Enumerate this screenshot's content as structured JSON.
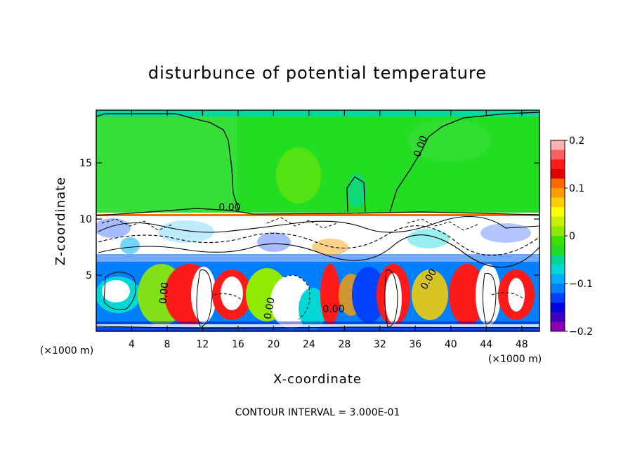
{
  "chart_data": {
    "type": "heatmap",
    "title": "disturbunce of potential temperature",
    "xlabel": "X-coordinate",
    "ylabel": "Z-coordinate",
    "x_unit_label": "(×1000 m)",
    "x_unit_label_right": "(×1000 m)",
    "xlim": [
      0,
      50
    ],
    "ylim": [
      0,
      19.7
    ],
    "x_ticks": [
      4,
      8,
      12,
      16,
      20,
      24,
      28,
      32,
      36,
      40,
      44,
      48
    ],
    "x_tick_labels": [
      "4",
      "8",
      "12",
      "16",
      "20",
      "24",
      "28",
      "32",
      "36",
      "40",
      "44",
      "48"
    ],
    "y_ticks": [
      5,
      10,
      15
    ],
    "y_tick_labels": [
      "5",
      "10",
      "15"
    ],
    "footer": "CONTOUR INTERVAL = 3.000E-01",
    "contour_labels": [
      "0.00",
      "0.00",
      "0.00",
      "0.00",
      "0.00",
      "0.00"
    ],
    "colorbar": {
      "range": [
        -0.2,
        0.2
      ],
      "ticks": [
        0.2,
        0.1,
        0,
        -0.1,
        -0.2
      ],
      "tick_labels": [
        "0.2",
        "0.1",
        "0",
        "−0.1",
        "−0.2"
      ],
      "colors": [
        "#ffb0b0",
        "#ff6060",
        "#ff1a1a",
        "#e00000",
        "#ff6a00",
        "#ff9c00",
        "#ffd000",
        "#ffff00",
        "#c8f000",
        "#90ea00",
        "#3ee000",
        "#22dd22",
        "#00d890",
        "#00d8d8",
        "#00b0ff",
        "#0080ff",
        "#0040ff",
        "#0000e0",
        "#4000c0",
        "#8a00b0"
      ]
    },
    "regions": {
      "upper_layer": {
        "z_range": [
          10.6,
          19.7
        ],
        "dominant_value": 0.0
      },
      "cloud_layer": {
        "z_range": [
          6.5,
          10.6
        ],
        "dominant_value": "mixed"
      },
      "lower_layer": {
        "z_range": [
          0,
          6.5
        ],
        "dominant_value": "mixed"
      }
    }
  }
}
